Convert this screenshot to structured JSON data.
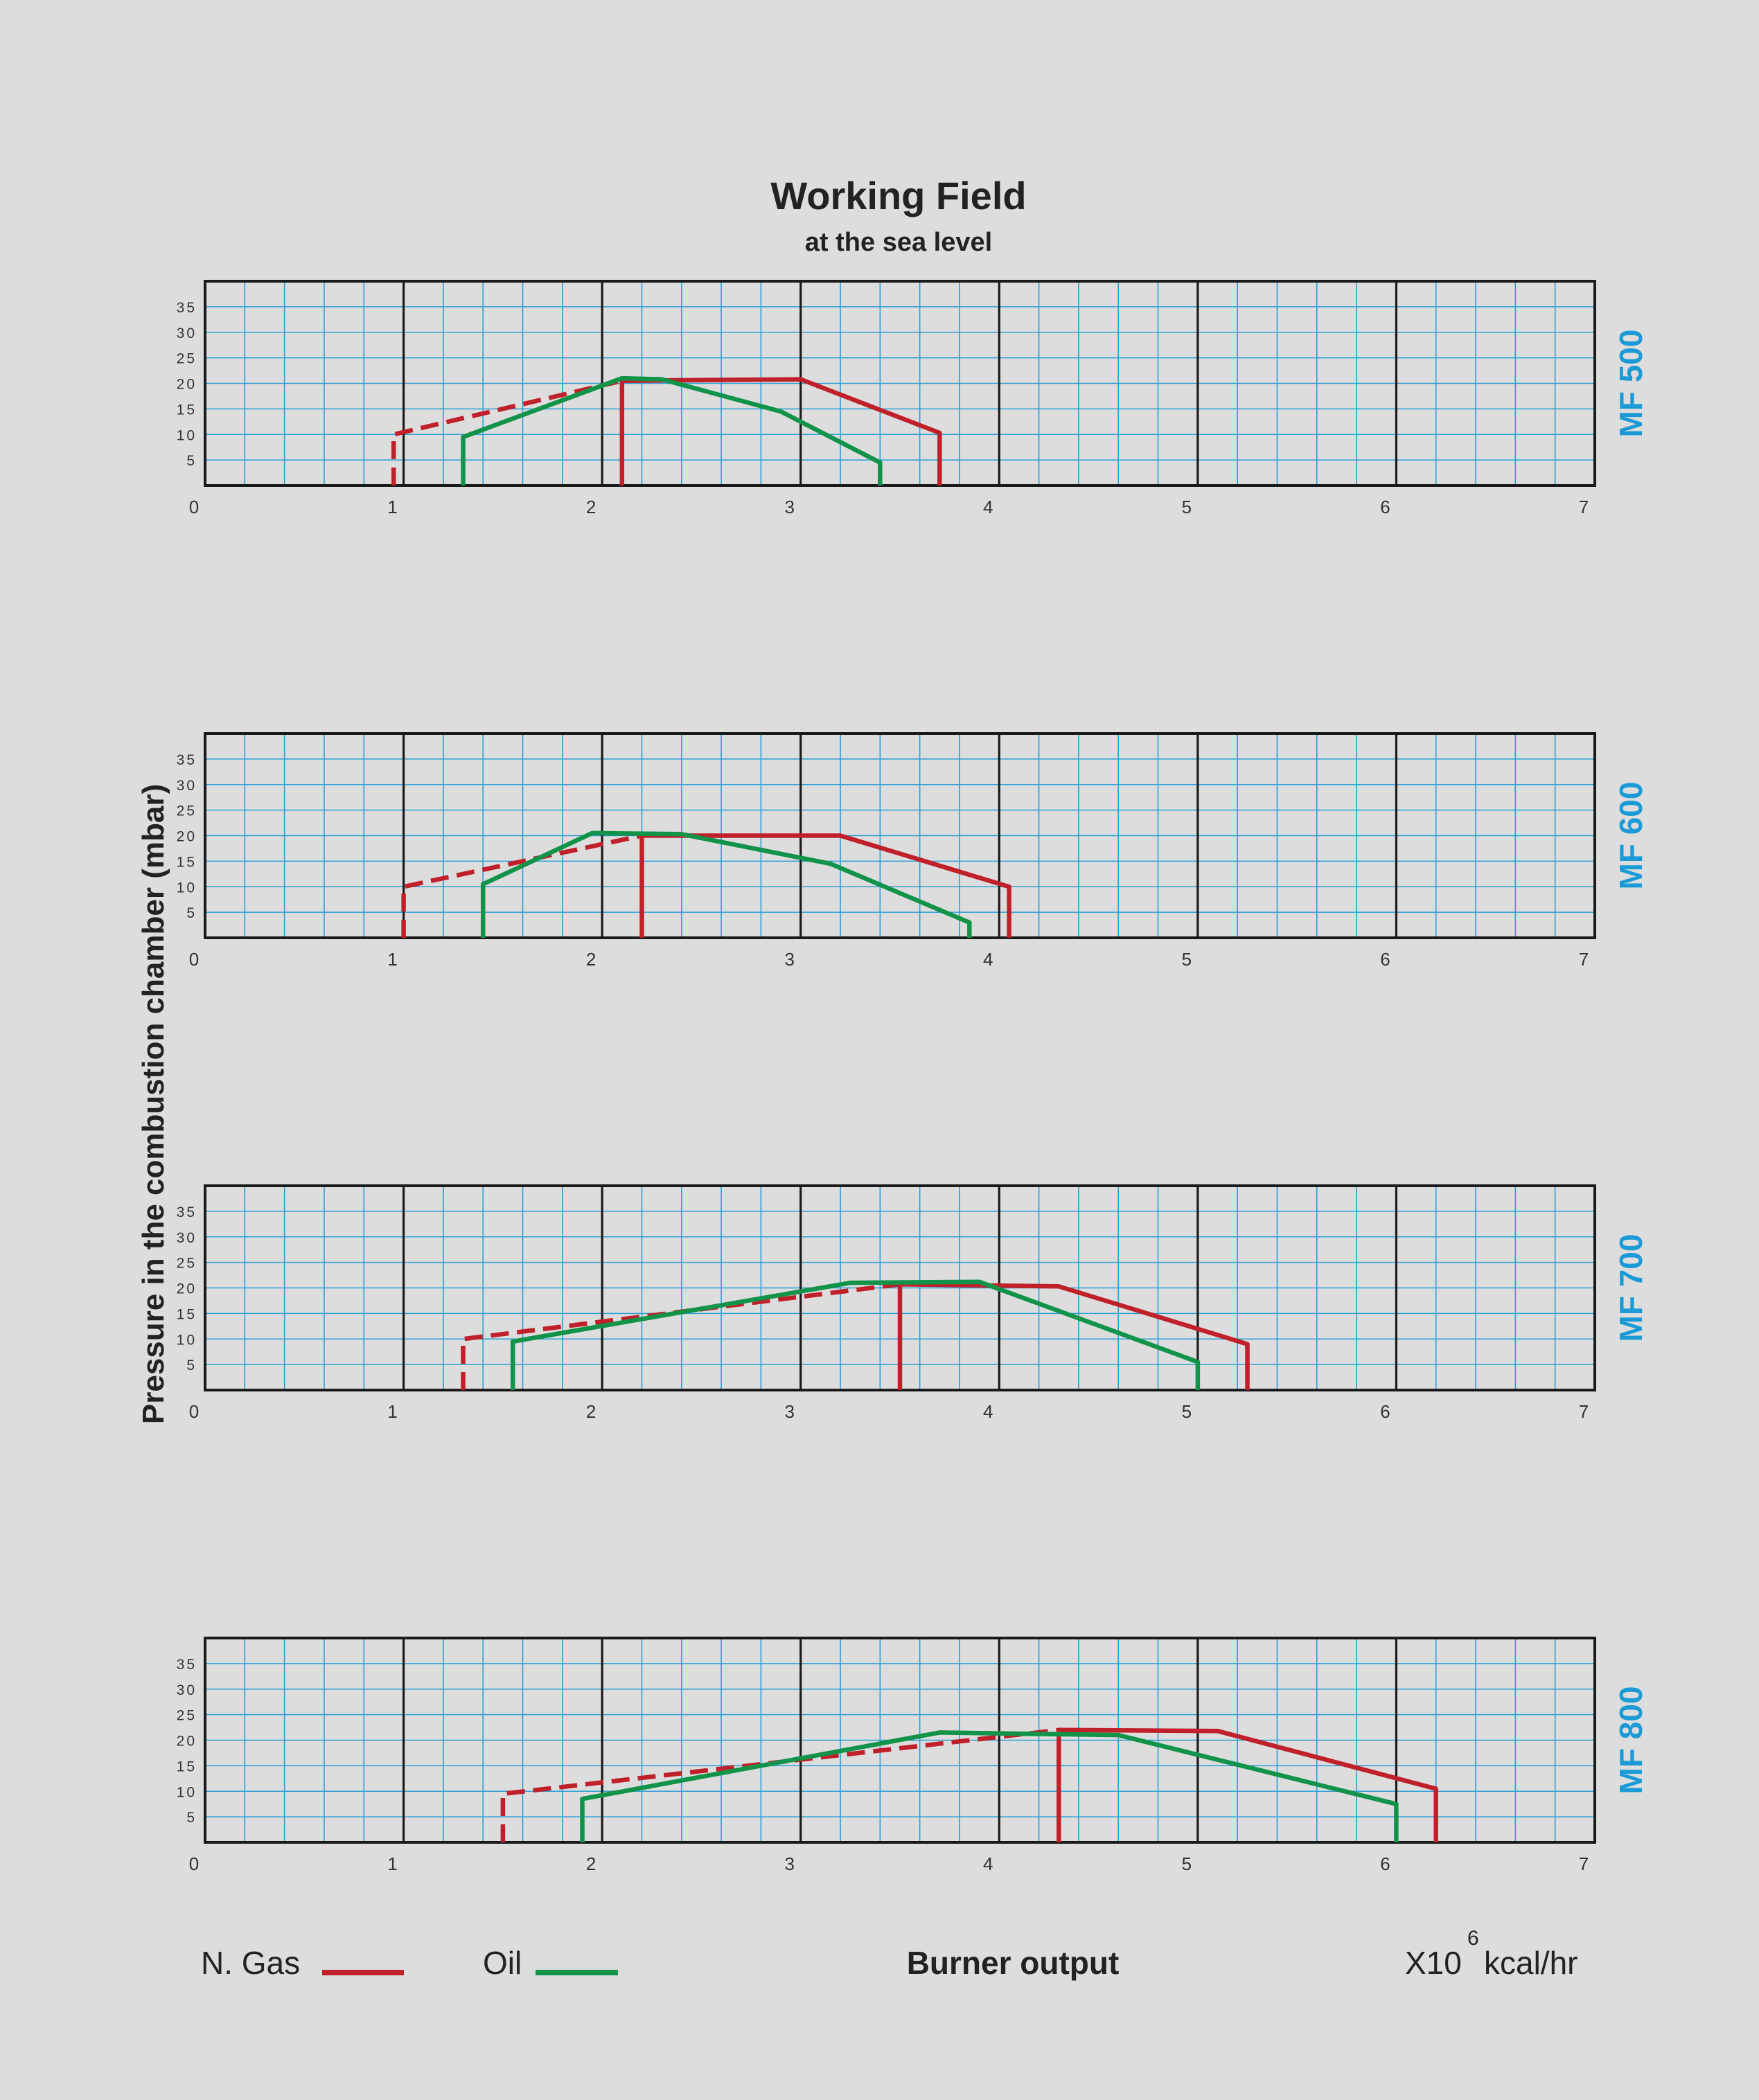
{
  "header": {
    "title": "Working Field",
    "subtitle": "at the sea level"
  },
  "y_axis_label": "Pressure in the combustion chamber (mbar)",
  "legend": {
    "gas_label": "N. Gas",
    "oil_label": "Oil",
    "x_axis_label": "Burner output",
    "unit_prefix": "X10",
    "unit_exponent": "6",
    "unit_suffix": "kcal/hr"
  },
  "colors": {
    "gas": "#c0202a",
    "oil": "#12934a",
    "grid_minor": "#2a9fd6",
    "grid_major": "#1a1a1a",
    "model_label": "#1a9ad6",
    "background": "#dddddd"
  },
  "chart_data": [
    {
      "type": "line",
      "model": "MF 500",
      "xlim": [
        0,
        7
      ],
      "ylim": [
        0,
        40
      ],
      "x_ticks": [
        "0",
        "1",
        "2",
        "3",
        "4",
        "5",
        "6",
        "7"
      ],
      "y_ticks": [
        "5",
        "10",
        "15",
        "20",
        "25",
        "30",
        "35"
      ],
      "series": [
        {
          "name": "N. Gas",
          "style": "dashed",
          "points": [
            [
              0.95,
              0
            ],
            [
              0.95,
              10
            ],
            [
              2.1,
              20.5
            ]
          ]
        },
        {
          "name": "N. Gas",
          "style": "solid",
          "points": [
            [
              2.1,
              0
            ],
            [
              2.1,
              20.5
            ],
            [
              3.0,
              20.8
            ],
            [
              3.7,
              10.3
            ],
            [
              3.7,
              0
            ]
          ]
        },
        {
          "name": "Oil",
          "style": "solid",
          "points": [
            [
              1.3,
              0
            ],
            [
              1.3,
              9.5
            ],
            [
              2.1,
              21
            ],
            [
              2.3,
              20.8
            ],
            [
              2.9,
              14.5
            ],
            [
              3.4,
              4.5
            ],
            [
              3.4,
              0
            ]
          ]
        }
      ]
    },
    {
      "type": "line",
      "model": "MF 600",
      "xlim": [
        0,
        7
      ],
      "ylim": [
        0,
        40
      ],
      "x_ticks": [
        "0",
        "1",
        "2",
        "3",
        "4",
        "5",
        "6",
        "7"
      ],
      "y_ticks": [
        "5",
        "10",
        "15",
        "20",
        "25",
        "30",
        "35"
      ],
      "series": [
        {
          "name": "N. Gas",
          "style": "dashed",
          "points": [
            [
              1.0,
              0
            ],
            [
              1.0,
              10
            ],
            [
              2.2,
              20
            ]
          ]
        },
        {
          "name": "N. Gas",
          "style": "solid",
          "points": [
            [
              2.2,
              0
            ],
            [
              2.2,
              20
            ],
            [
              3.2,
              20
            ],
            [
              4.05,
              10
            ],
            [
              4.05,
              0
            ]
          ]
        },
        {
          "name": "Oil",
          "style": "solid",
          "points": [
            [
              1.4,
              0
            ],
            [
              1.4,
              10.5
            ],
            [
              1.95,
              20.5
            ],
            [
              2.4,
              20.3
            ],
            [
              3.15,
              14.5
            ],
            [
              3.85,
              3
            ],
            [
              3.85,
              0
            ]
          ]
        }
      ]
    },
    {
      "type": "line",
      "model": "MF 700",
      "xlim": [
        0,
        7
      ],
      "ylim": [
        0,
        40
      ],
      "x_ticks": [
        "0",
        "1",
        "2",
        "3",
        "4",
        "5",
        "6",
        "7"
      ],
      "y_ticks": [
        "5",
        "10",
        "15",
        "20",
        "25",
        "30",
        "35"
      ],
      "series": [
        {
          "name": "N. Gas",
          "style": "dashed",
          "points": [
            [
              1.3,
              0
            ],
            [
              1.3,
              10
            ],
            [
              3.5,
              20.7
            ]
          ]
        },
        {
          "name": "N. Gas",
          "style": "solid",
          "points": [
            [
              3.5,
              0
            ],
            [
              3.5,
              20.7
            ],
            [
              4.3,
              20.3
            ],
            [
              5.25,
              9
            ],
            [
              5.25,
              0
            ]
          ]
        },
        {
          "name": "Oil",
          "style": "solid",
          "points": [
            [
              1.55,
              0
            ],
            [
              1.55,
              9.5
            ],
            [
              3.25,
              21
            ],
            [
              3.9,
              21.2
            ],
            [
              5.0,
              5.5
            ],
            [
              5.0,
              0
            ]
          ]
        }
      ]
    },
    {
      "type": "line",
      "model": "MF 800",
      "xlim": [
        0,
        7
      ],
      "ylim": [
        0,
        40
      ],
      "x_ticks": [
        "0",
        "1",
        "2",
        "3",
        "4",
        "5",
        "6",
        "7"
      ],
      "y_ticks": [
        "5",
        "10",
        "15",
        "20",
        "25",
        "30",
        "35"
      ],
      "series": [
        {
          "name": "N. Gas",
          "style": "dashed",
          "points": [
            [
              1.5,
              0
            ],
            [
              1.5,
              9.5
            ],
            [
              4.3,
              22
            ]
          ]
        },
        {
          "name": "N. Gas",
          "style": "solid",
          "points": [
            [
              4.3,
              0
            ],
            [
              4.3,
              22
            ],
            [
              5.1,
              21.8
            ],
            [
              6.2,
              10.5
            ],
            [
              6.2,
              0
            ]
          ]
        },
        {
          "name": "Oil",
          "style": "solid",
          "points": [
            [
              1.9,
              0
            ],
            [
              1.9,
              8.5
            ],
            [
              3.7,
              21.5
            ],
            [
              4.6,
              21
            ],
            [
              6.0,
              7.5
            ],
            [
              6.0,
              0
            ]
          ]
        }
      ]
    }
  ]
}
